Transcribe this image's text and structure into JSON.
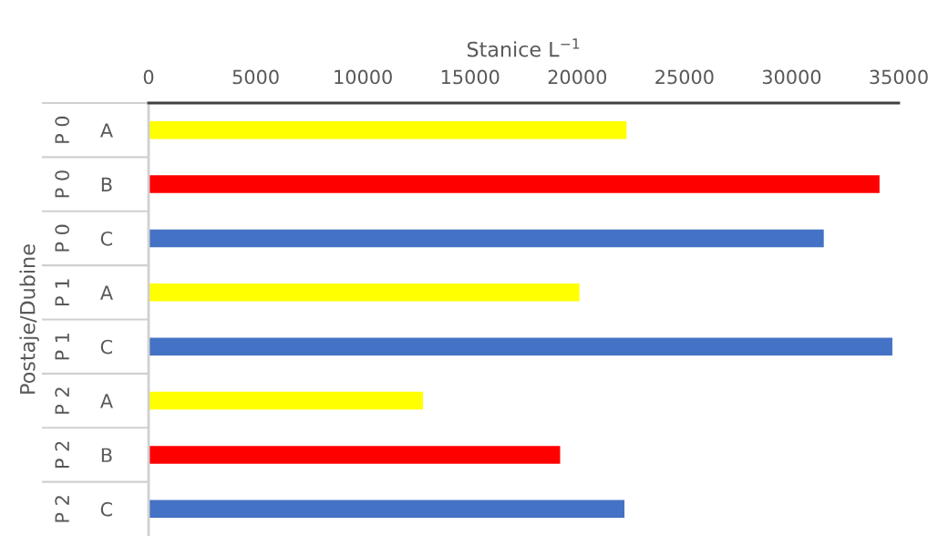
{
  "chart_data": {
    "type": "bar",
    "orientation": "horizontal",
    "xlabel": "Stanice L$^{−1}$",
    "ylabel": "Postaje/Dubine",
    "categories": [
      "A",
      "B",
      "C",
      "A",
      "C",
      "A",
      "B",
      "C"
    ],
    "annotations": [
      "P 0",
      "P 0",
      "P 0",
      "P 1",
      "P 1",
      "P 2",
      "P 2",
      "P 2"
    ],
    "values": [
      22300,
      34100,
      31500,
      20100,
      34700,
      12800,
      19200,
      22200
    ],
    "colors": [
      "#ffff00",
      "#ff0000",
      "#4472c4",
      "#ffff00",
      "#4472c4",
      "#ffff00",
      "#ff0000",
      "#4472c4"
    ],
    "xlim": [
      0,
      35000
    ],
    "xticks": [
      0,
      5000,
      10000,
      15000,
      20000,
      25000,
      30000,
      35000
    ],
    "grid": false
  }
}
